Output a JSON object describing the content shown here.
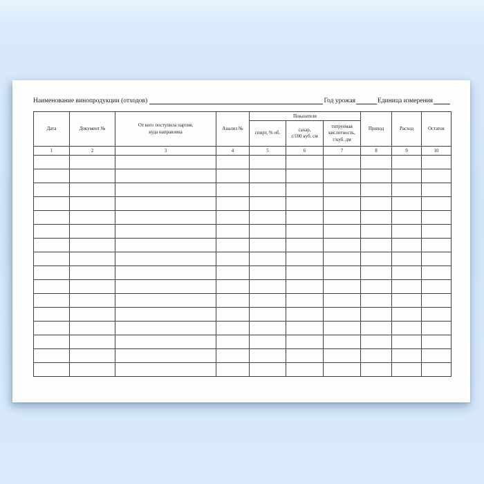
{
  "page": {
    "background_color": "#d4e6f8",
    "paper_color": "#fdfdfc",
    "line_color": "#3f3f3f"
  },
  "form": {
    "title_label": "Наименование винопродукции (отходов)",
    "harvest_year_label": "Год урожая",
    "unit_label": "Единица измерения"
  },
  "table": {
    "group_label": "Показатели",
    "columns": [
      {
        "label": "Дата",
        "num": "1"
      },
      {
        "label": "Документ №",
        "num": "2"
      },
      {
        "label": "От кого поступила партия,\nкуда направлена",
        "num": "3"
      },
      {
        "label": "Анализ №",
        "num": "4"
      },
      {
        "label": "спирт, % об.",
        "num": "5"
      },
      {
        "label": "сахар,\nг/100 куб. см",
        "num": "6"
      },
      {
        "label": "титруемая\nкислотность,\nг/куб. дм",
        "num": "7"
      },
      {
        "label": "Приход",
        "num": "8"
      },
      {
        "label": "Расход",
        "num": "9"
      },
      {
        "label": "Остаток",
        "num": "10"
      }
    ],
    "empty_rows": 16
  }
}
